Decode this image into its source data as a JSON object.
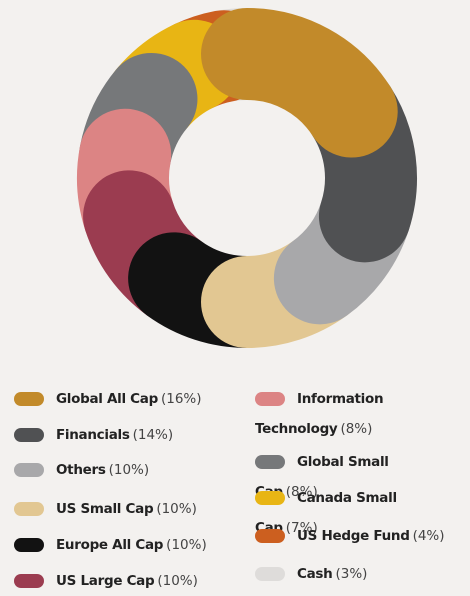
{
  "chart_data": {
    "type": "donut",
    "categories": [
      "Global All Cap",
      "Financials",
      "Others",
      "US Small Cap",
      "Europe All Cap",
      "US Large Cap",
      "Information Technology",
      "Global Small Cap",
      "Canada Small Cap",
      "US Hedge Fund",
      "Cash"
    ],
    "values": [
      16,
      14,
      10,
      10,
      10,
      10,
      8,
      8,
      7,
      4,
      3
    ],
    "value_labels": [
      "(16%)",
      "(14%)",
      "(10%)",
      "(10%)",
      "(10%)",
      "(10%)",
      "(8%)",
      "(8%)",
      "(7%)",
      "(4%)",
      "(3%)"
    ],
    "colors": [
      "#c28a2a",
      "#505153",
      "#a8a8aa",
      "#e2c792",
      "#121212",
      "#9b3c50",
      "#dc8484",
      "#76787a",
      "#e8b514",
      "#cc5f1f",
      "#dedcda"
    ]
  }
}
